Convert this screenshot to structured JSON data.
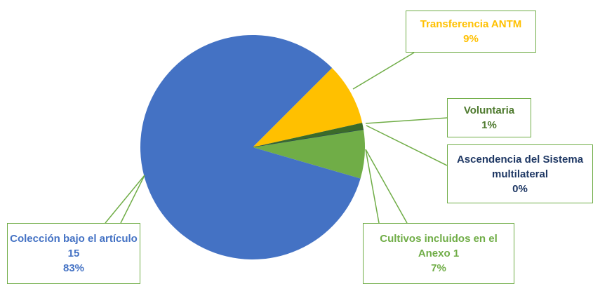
{
  "chart_data": {
    "type": "pie",
    "categories": [
      "Transferencia ANTM",
      "Voluntaria",
      "Ascendencia del Sistema multilateral",
      "Cultivos incluidos en el Anexo 1",
      "Colección bajo el artículo 15"
    ],
    "values": [
      9,
      1,
      0,
      7,
      83
    ],
    "value_labels": [
      "9%",
      "1%",
      "0%",
      "7%",
      "83%"
    ],
    "colors": [
      "#ffc000",
      "#3b6b2a",
      "#1f3864",
      "#70ad47",
      "#4472c4"
    ],
    "label_colors": [
      "#ffc000",
      "#4e7a2e",
      "#1f3864",
      "#70ad47",
      "#4472c4"
    ]
  }
}
